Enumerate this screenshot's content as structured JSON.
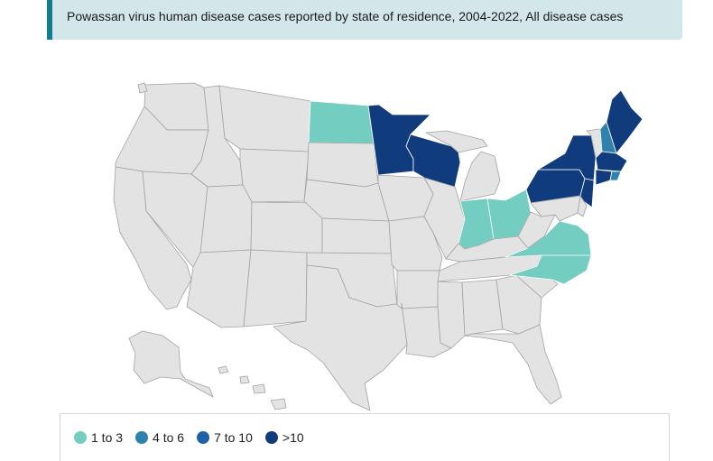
{
  "header": {
    "title": "Powassan virus human disease cases reported by state of residence, 2004-2022, All disease cases"
  },
  "colors": {
    "no_data": "#e3e3e3",
    "border": "#9a9a9a",
    "1_to_3": "#74cdc1",
    "4_to_6": "#2e82ab",
    "7_to_10": "#1d63a5",
    "gt_10": "#103b7c"
  },
  "legend": {
    "items": [
      {
        "label": "1 to 3",
        "color": "#74cdc1"
      },
      {
        "label": "4 to 6",
        "color": "#2e82ab"
      },
      {
        "label": "7 to 10",
        "color": "#1d63a5"
      },
      {
        "label": ">10",
        "color": "#103b7c"
      }
    ]
  },
  "map_data": {
    "category_by_state": {
      "North Dakota": "1 to 3",
      "Indiana": "1 to 3",
      "Ohio": "1 to 3",
      "Virginia": "1 to 3",
      "North Carolina": "1 to 3",
      "New Hampshire": "4 to 6",
      "Rhode Island": "4 to 6",
      "Minnesota": ">10",
      "Wisconsin": ">10",
      "New York": ">10",
      "Pennsylvania": ">10",
      "New Jersey": ">10",
      "Massachusetts": ">10",
      "Connecticut": ">10",
      "Maine": ">10"
    }
  }
}
